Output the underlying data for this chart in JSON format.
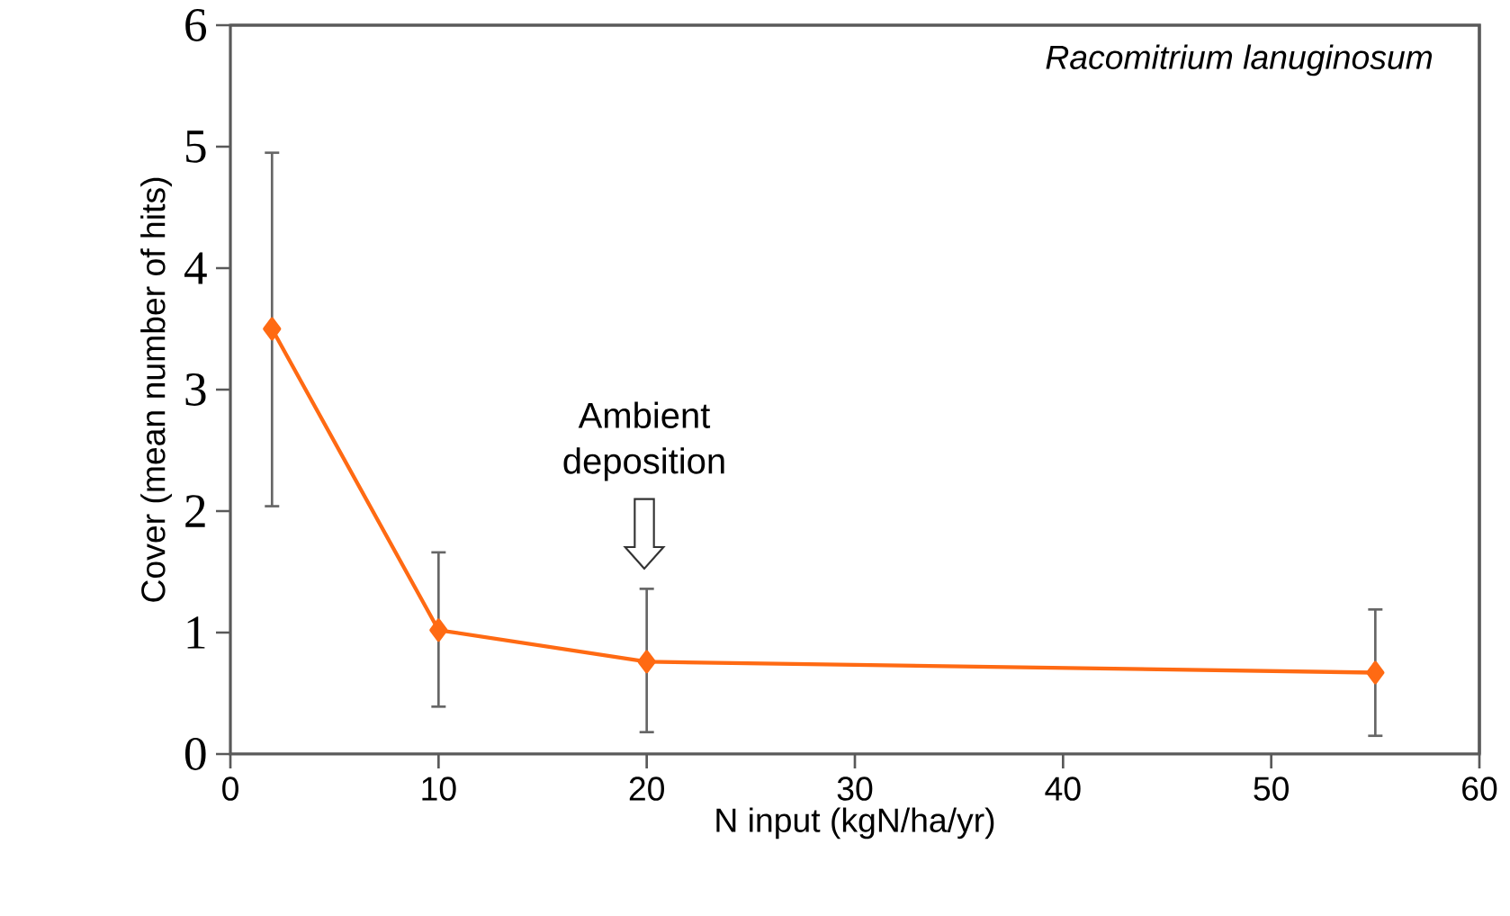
{
  "chart_data": {
    "type": "line",
    "xlabel": "N input (kgN/ha/yr)",
    "ylabel": "Cover (mean number of hits)",
    "x": [
      2,
      10,
      20,
      55
    ],
    "series": [
      {
        "color": "#ff6a13",
        "values": [
          3.5,
          1.02,
          0.76,
          0.67
        ],
        "errors": [
          [
            2.04,
            4.95
          ],
          [
            0.39,
            1.66
          ],
          [
            0.18,
            1.36
          ],
          [
            0.15,
            1.19
          ]
        ]
      }
    ],
    "xlim": [
      0,
      60
    ],
    "xticks": [
      0,
      10,
      20,
      30,
      40,
      50,
      60
    ],
    "ylim": [
      0,
      6
    ],
    "yticks": [
      0,
      1,
      2,
      3,
      4,
      5,
      6
    ],
    "marker": "diamond",
    "line_style": "solid",
    "grid": false,
    "annotations": [
      "Racomitrium lanuginosum",
      "Ambient deposition"
    ]
  }
}
